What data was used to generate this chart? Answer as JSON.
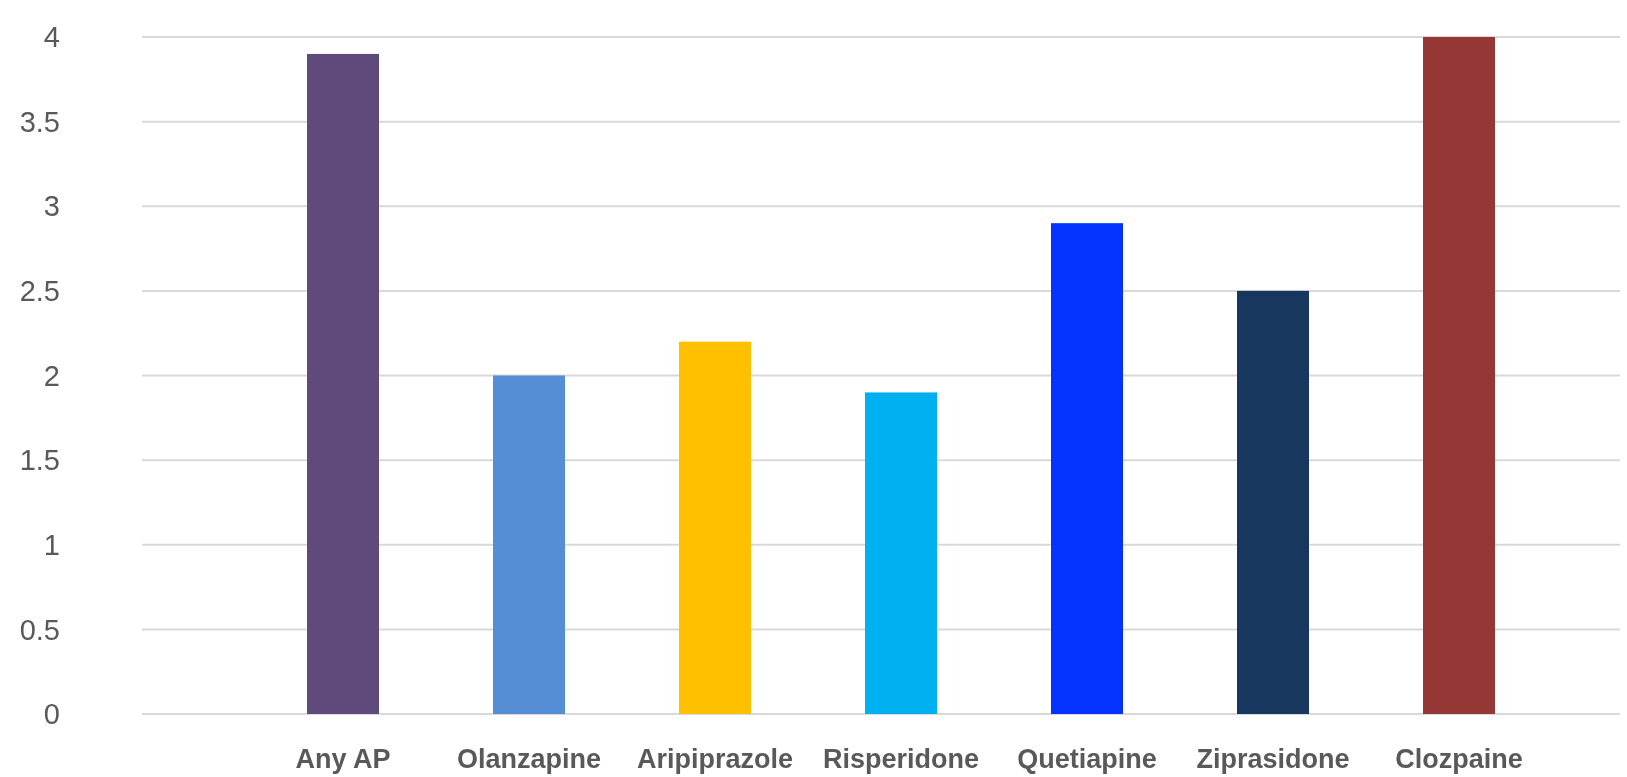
{
  "chart_data": {
    "type": "bar",
    "categories": [
      "Any AP",
      "Olanzapine",
      "Aripiprazole",
      "Risperidone",
      "Quetiapine",
      "Ziprasidone",
      "Clozpaine"
    ],
    "values": [
      3.9,
      2.0,
      2.2,
      1.9,
      2.9,
      2.5,
      4.0
    ],
    "colors": [
      "#604a7b",
      "#558ed5",
      "#ffc000",
      "#00b0f0",
      "#0432ff",
      "#17375e",
      "#953735"
    ],
    "ylim": [
      0,
      4
    ],
    "yticks": [
      0,
      0.5,
      1,
      1.5,
      2,
      2.5,
      3,
      3.5,
      4
    ],
    "grid": "y"
  }
}
